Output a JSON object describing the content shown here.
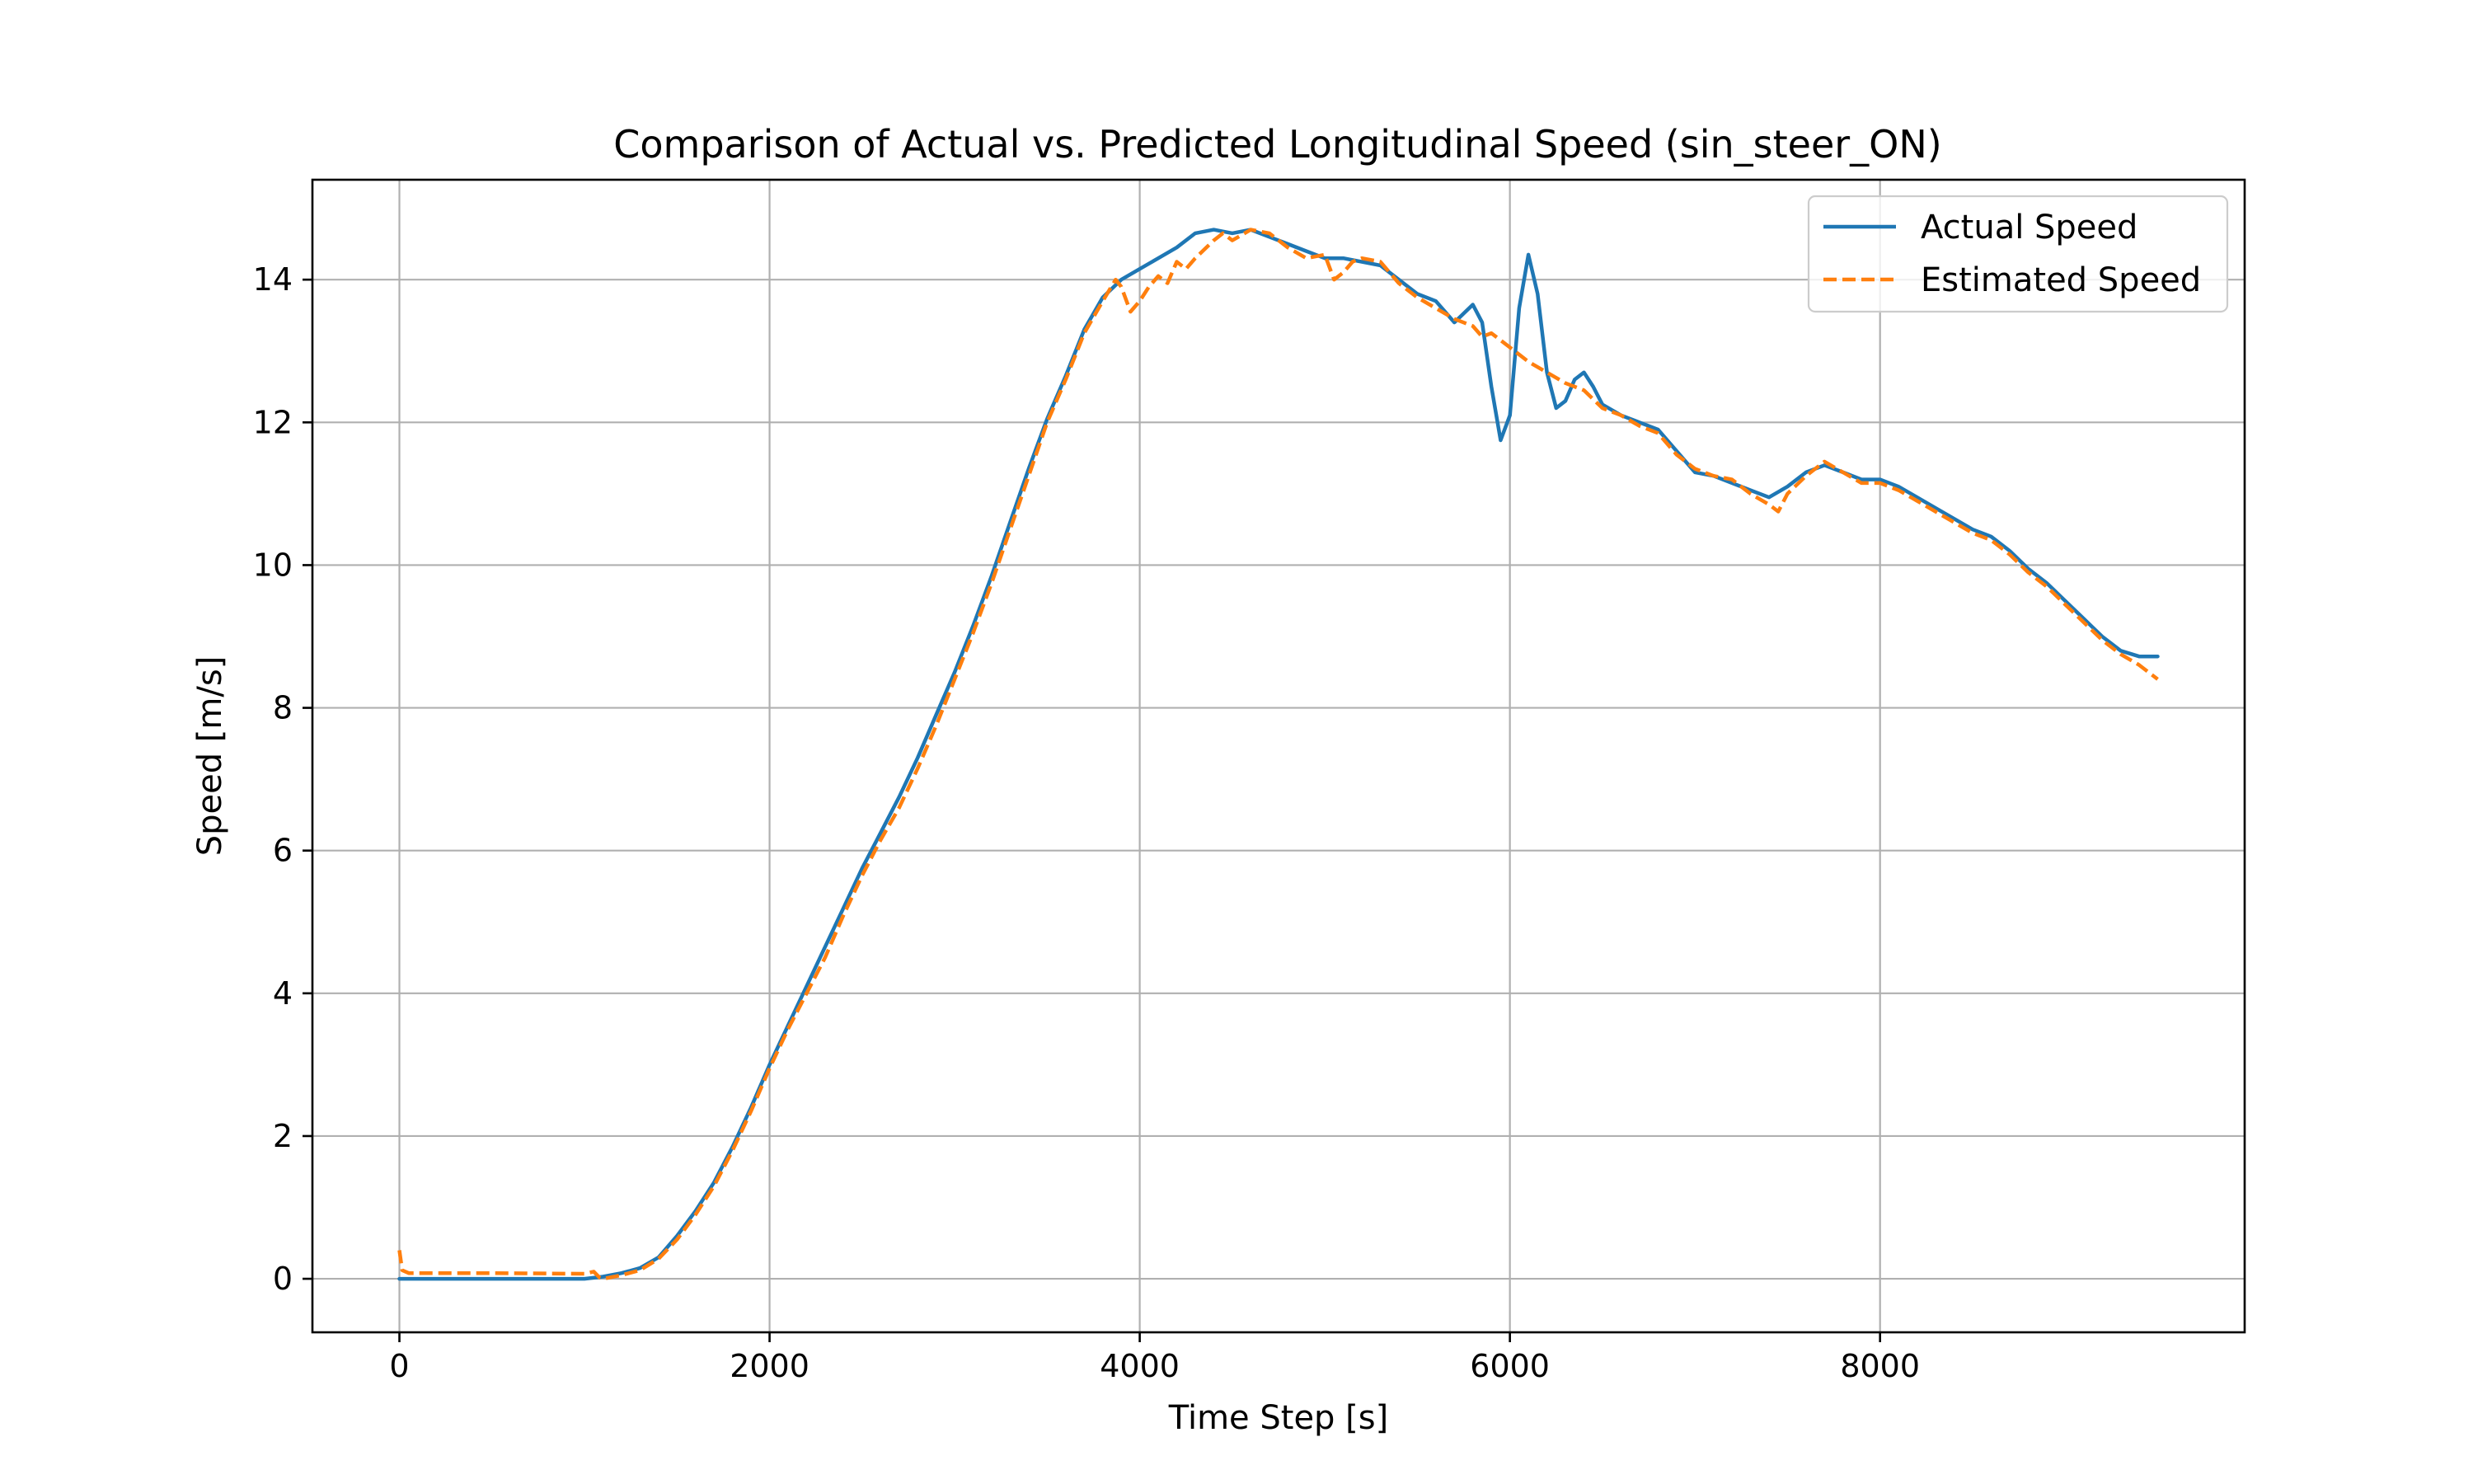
{
  "chart_data": {
    "type": "line",
    "title": "Comparison of Actual vs. Predicted Longitudinal Speed (sin_steer_ON)",
    "xlabel": "Time Step [s]",
    "ylabel": "Speed [m/s]",
    "xlim": [
      -470,
      9970
    ],
    "ylim": [
      -0.75,
      15.4
    ],
    "xticks": [
      0,
      2000,
      4000,
      6000,
      8000
    ],
    "yticks": [
      0,
      2,
      4,
      6,
      8,
      10,
      12,
      14
    ],
    "grid": true,
    "legend_position": "upper-right",
    "colors": {
      "actual": "#1f77b4",
      "estimated": "#ff7f0e"
    },
    "series": [
      {
        "name": "Actual Speed",
        "style": "solid",
        "points": [
          [
            0,
            0
          ],
          [
            1000,
            0
          ],
          [
            1100,
            0.03
          ],
          [
            1200,
            0.08
          ],
          [
            1300,
            0.15
          ],
          [
            1400,
            0.3
          ],
          [
            1500,
            0.6
          ],
          [
            1600,
            0.95
          ],
          [
            1700,
            1.35
          ],
          [
            1800,
            1.85
          ],
          [
            1900,
            2.4
          ],
          [
            2000,
            3.0
          ],
          [
            2100,
            3.55
          ],
          [
            2200,
            4.1
          ],
          [
            2300,
            4.65
          ],
          [
            2400,
            5.2
          ],
          [
            2500,
            5.75
          ],
          [
            2600,
            6.25
          ],
          [
            2700,
            6.75
          ],
          [
            2800,
            7.3
          ],
          [
            2900,
            7.9
          ],
          [
            3000,
            8.5
          ],
          [
            3100,
            9.15
          ],
          [
            3200,
            9.85
          ],
          [
            3300,
            10.6
          ],
          [
            3400,
            11.35
          ],
          [
            3500,
            12.05
          ],
          [
            3600,
            12.65
          ],
          [
            3700,
            13.3
          ],
          [
            3800,
            13.75
          ],
          [
            3900,
            14.0
          ],
          [
            4000,
            14.15
          ],
          [
            4100,
            14.3
          ],
          [
            4200,
            14.45
          ],
          [
            4300,
            14.65
          ],
          [
            4400,
            14.7
          ],
          [
            4500,
            14.65
          ],
          [
            4600,
            14.7
          ],
          [
            4700,
            14.6
          ],
          [
            4800,
            14.5
          ],
          [
            4900,
            14.4
          ],
          [
            5000,
            14.3
          ],
          [
            5100,
            14.3
          ],
          [
            5200,
            14.25
          ],
          [
            5300,
            14.2
          ],
          [
            5400,
            14.0
          ],
          [
            5500,
            13.8
          ],
          [
            5600,
            13.7
          ],
          [
            5700,
            13.4
          ],
          [
            5800,
            13.65
          ],
          [
            5850,
            13.4
          ],
          [
            5900,
            12.5
          ],
          [
            5950,
            11.75
          ],
          [
            6000,
            12.1
          ],
          [
            6050,
            13.6
          ],
          [
            6100,
            14.35
          ],
          [
            6150,
            13.8
          ],
          [
            6200,
            12.7
          ],
          [
            6250,
            12.2
          ],
          [
            6300,
            12.3
          ],
          [
            6350,
            12.6
          ],
          [
            6400,
            12.7
          ],
          [
            6450,
            12.5
          ],
          [
            6500,
            12.25
          ],
          [
            6600,
            12.1
          ],
          [
            6700,
            12.0
          ],
          [
            6800,
            11.9
          ],
          [
            6900,
            11.6
          ],
          [
            7000,
            11.3
          ],
          [
            7100,
            11.25
          ],
          [
            7200,
            11.15
          ],
          [
            7300,
            11.05
          ],
          [
            7400,
            10.95
          ],
          [
            7500,
            11.1
          ],
          [
            7600,
            11.3
          ],
          [
            7700,
            11.4
          ],
          [
            7800,
            11.3
          ],
          [
            7900,
            11.2
          ],
          [
            8000,
            11.2
          ],
          [
            8100,
            11.1
          ],
          [
            8200,
            10.95
          ],
          [
            8300,
            10.8
          ],
          [
            8400,
            10.65
          ],
          [
            8500,
            10.5
          ],
          [
            8600,
            10.4
          ],
          [
            8700,
            10.2
          ],
          [
            8800,
            9.95
          ],
          [
            8900,
            9.75
          ],
          [
            9000,
            9.5
          ],
          [
            9100,
            9.25
          ],
          [
            9200,
            9.0
          ],
          [
            9300,
            8.8
          ],
          [
            9400,
            8.72
          ],
          [
            9500,
            8.72
          ]
        ]
      },
      {
        "name": "Estimated Speed",
        "style": "dashed",
        "points": [
          [
            0,
            0.4
          ],
          [
            15,
            0.12
          ],
          [
            50,
            0.08
          ],
          [
            500,
            0.08
          ],
          [
            1000,
            0.07
          ],
          [
            1050,
            0.1
          ],
          [
            1080,
            0.02
          ],
          [
            1100,
            0.0
          ],
          [
            1200,
            0.05
          ],
          [
            1300,
            0.12
          ],
          [
            1400,
            0.28
          ],
          [
            1500,
            0.55
          ],
          [
            1600,
            0.9
          ],
          [
            1700,
            1.3
          ],
          [
            1800,
            1.8
          ],
          [
            1900,
            2.35
          ],
          [
            2000,
            2.95
          ],
          [
            2100,
            3.5
          ],
          [
            2200,
            4.0
          ],
          [
            2300,
            4.5
          ],
          [
            2400,
            5.1
          ],
          [
            2500,
            5.65
          ],
          [
            2600,
            6.15
          ],
          [
            2700,
            6.6
          ],
          [
            2800,
            7.15
          ],
          [
            2900,
            7.75
          ],
          [
            3000,
            8.4
          ],
          [
            3100,
            9.05
          ],
          [
            3200,
            9.75
          ],
          [
            3300,
            10.5
          ],
          [
            3400,
            11.25
          ],
          [
            3500,
            12.0
          ],
          [
            3600,
            12.6
          ],
          [
            3700,
            13.25
          ],
          [
            3800,
            13.7
          ],
          [
            3870,
            14.0
          ],
          [
            3900,
            13.9
          ],
          [
            3950,
            13.55
          ],
          [
            4000,
            13.7
          ],
          [
            4050,
            13.9
          ],
          [
            4100,
            14.05
          ],
          [
            4150,
            13.95
          ],
          [
            4200,
            14.25
          ],
          [
            4250,
            14.15
          ],
          [
            4300,
            14.3
          ],
          [
            4400,
            14.55
          ],
          [
            4450,
            14.65
          ],
          [
            4500,
            14.55
          ],
          [
            4600,
            14.7
          ],
          [
            4700,
            14.65
          ],
          [
            4800,
            14.45
          ],
          [
            4900,
            14.3
          ],
          [
            5000,
            14.35
          ],
          [
            5050,
            14.0
          ],
          [
            5100,
            14.1
          ],
          [
            5150,
            14.25
          ],
          [
            5200,
            14.3
          ],
          [
            5300,
            14.25
          ],
          [
            5400,
            13.95
          ],
          [
            5500,
            13.75
          ],
          [
            5600,
            13.6
          ],
          [
            5700,
            13.45
          ],
          [
            5800,
            13.35
          ],
          [
            5850,
            13.2
          ],
          [
            5900,
            13.25
          ],
          [
            6000,
            13.05
          ],
          [
            6100,
            12.85
          ],
          [
            6200,
            12.7
          ],
          [
            6300,
            12.55
          ],
          [
            6400,
            12.45
          ],
          [
            6500,
            12.2
          ],
          [
            6600,
            12.1
          ],
          [
            6700,
            11.95
          ],
          [
            6800,
            11.85
          ],
          [
            6900,
            11.55
          ],
          [
            7000,
            11.35
          ],
          [
            7100,
            11.25
          ],
          [
            7200,
            11.2
          ],
          [
            7300,
            11.0
          ],
          [
            7400,
            10.85
          ],
          [
            7450,
            10.75
          ],
          [
            7500,
            11.0
          ],
          [
            7600,
            11.25
          ],
          [
            7700,
            11.45
          ],
          [
            7800,
            11.3
          ],
          [
            7900,
            11.15
          ],
          [
            8000,
            11.15
          ],
          [
            8100,
            11.05
          ],
          [
            8200,
            10.9
          ],
          [
            8300,
            10.75
          ],
          [
            8400,
            10.6
          ],
          [
            8500,
            10.45
          ],
          [
            8600,
            10.35
          ],
          [
            8700,
            10.15
          ],
          [
            8800,
            9.9
          ],
          [
            8900,
            9.7
          ],
          [
            9000,
            9.45
          ],
          [
            9100,
            9.2
          ],
          [
            9200,
            8.95
          ],
          [
            9300,
            8.75
          ],
          [
            9400,
            8.6
          ],
          [
            9500,
            8.4
          ]
        ]
      }
    ]
  }
}
